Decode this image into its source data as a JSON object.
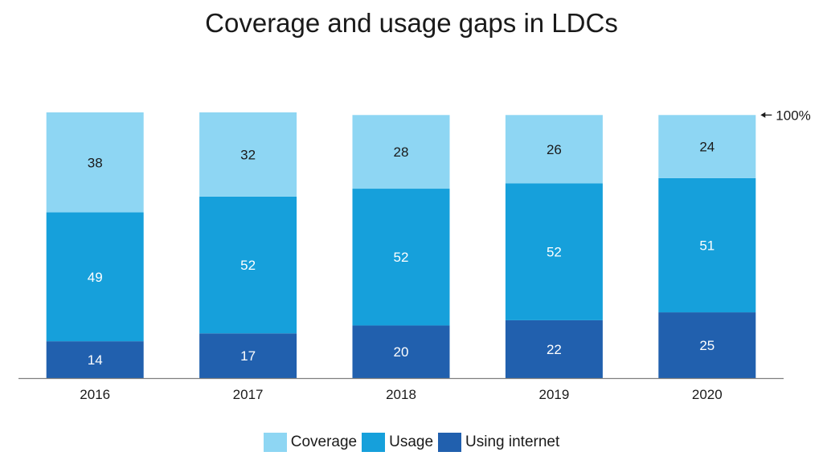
{
  "chart_data": {
    "type": "bar",
    "stacked": true,
    "title": "Coverage and usage gaps in LDCs",
    "categories": [
      "2016",
      "2017",
      "2018",
      "2019",
      "2020"
    ],
    "series": [
      {
        "name": "Using internet",
        "color": "#2160AE",
        "label_color": "#ffffff",
        "values": [
          14,
          17,
          20,
          22,
          25
        ]
      },
      {
        "name": "Usage",
        "color": "#16A0DB",
        "label_color": "#ffffff",
        "values": [
          49,
          52,
          52,
          52,
          51
        ]
      },
      {
        "name": "Coverage",
        "color": "#8ED6F3",
        "label_color": "#1a1a1a",
        "values": [
          38,
          32,
          28,
          26,
          24
        ]
      }
    ],
    "legend_order": [
      "Coverage",
      "Usage",
      "Using internet"
    ],
    "legend_position": "bottom",
    "ylim": [
      0,
      101
    ],
    "annotation": {
      "text": "100%",
      "value": 100
    }
  }
}
